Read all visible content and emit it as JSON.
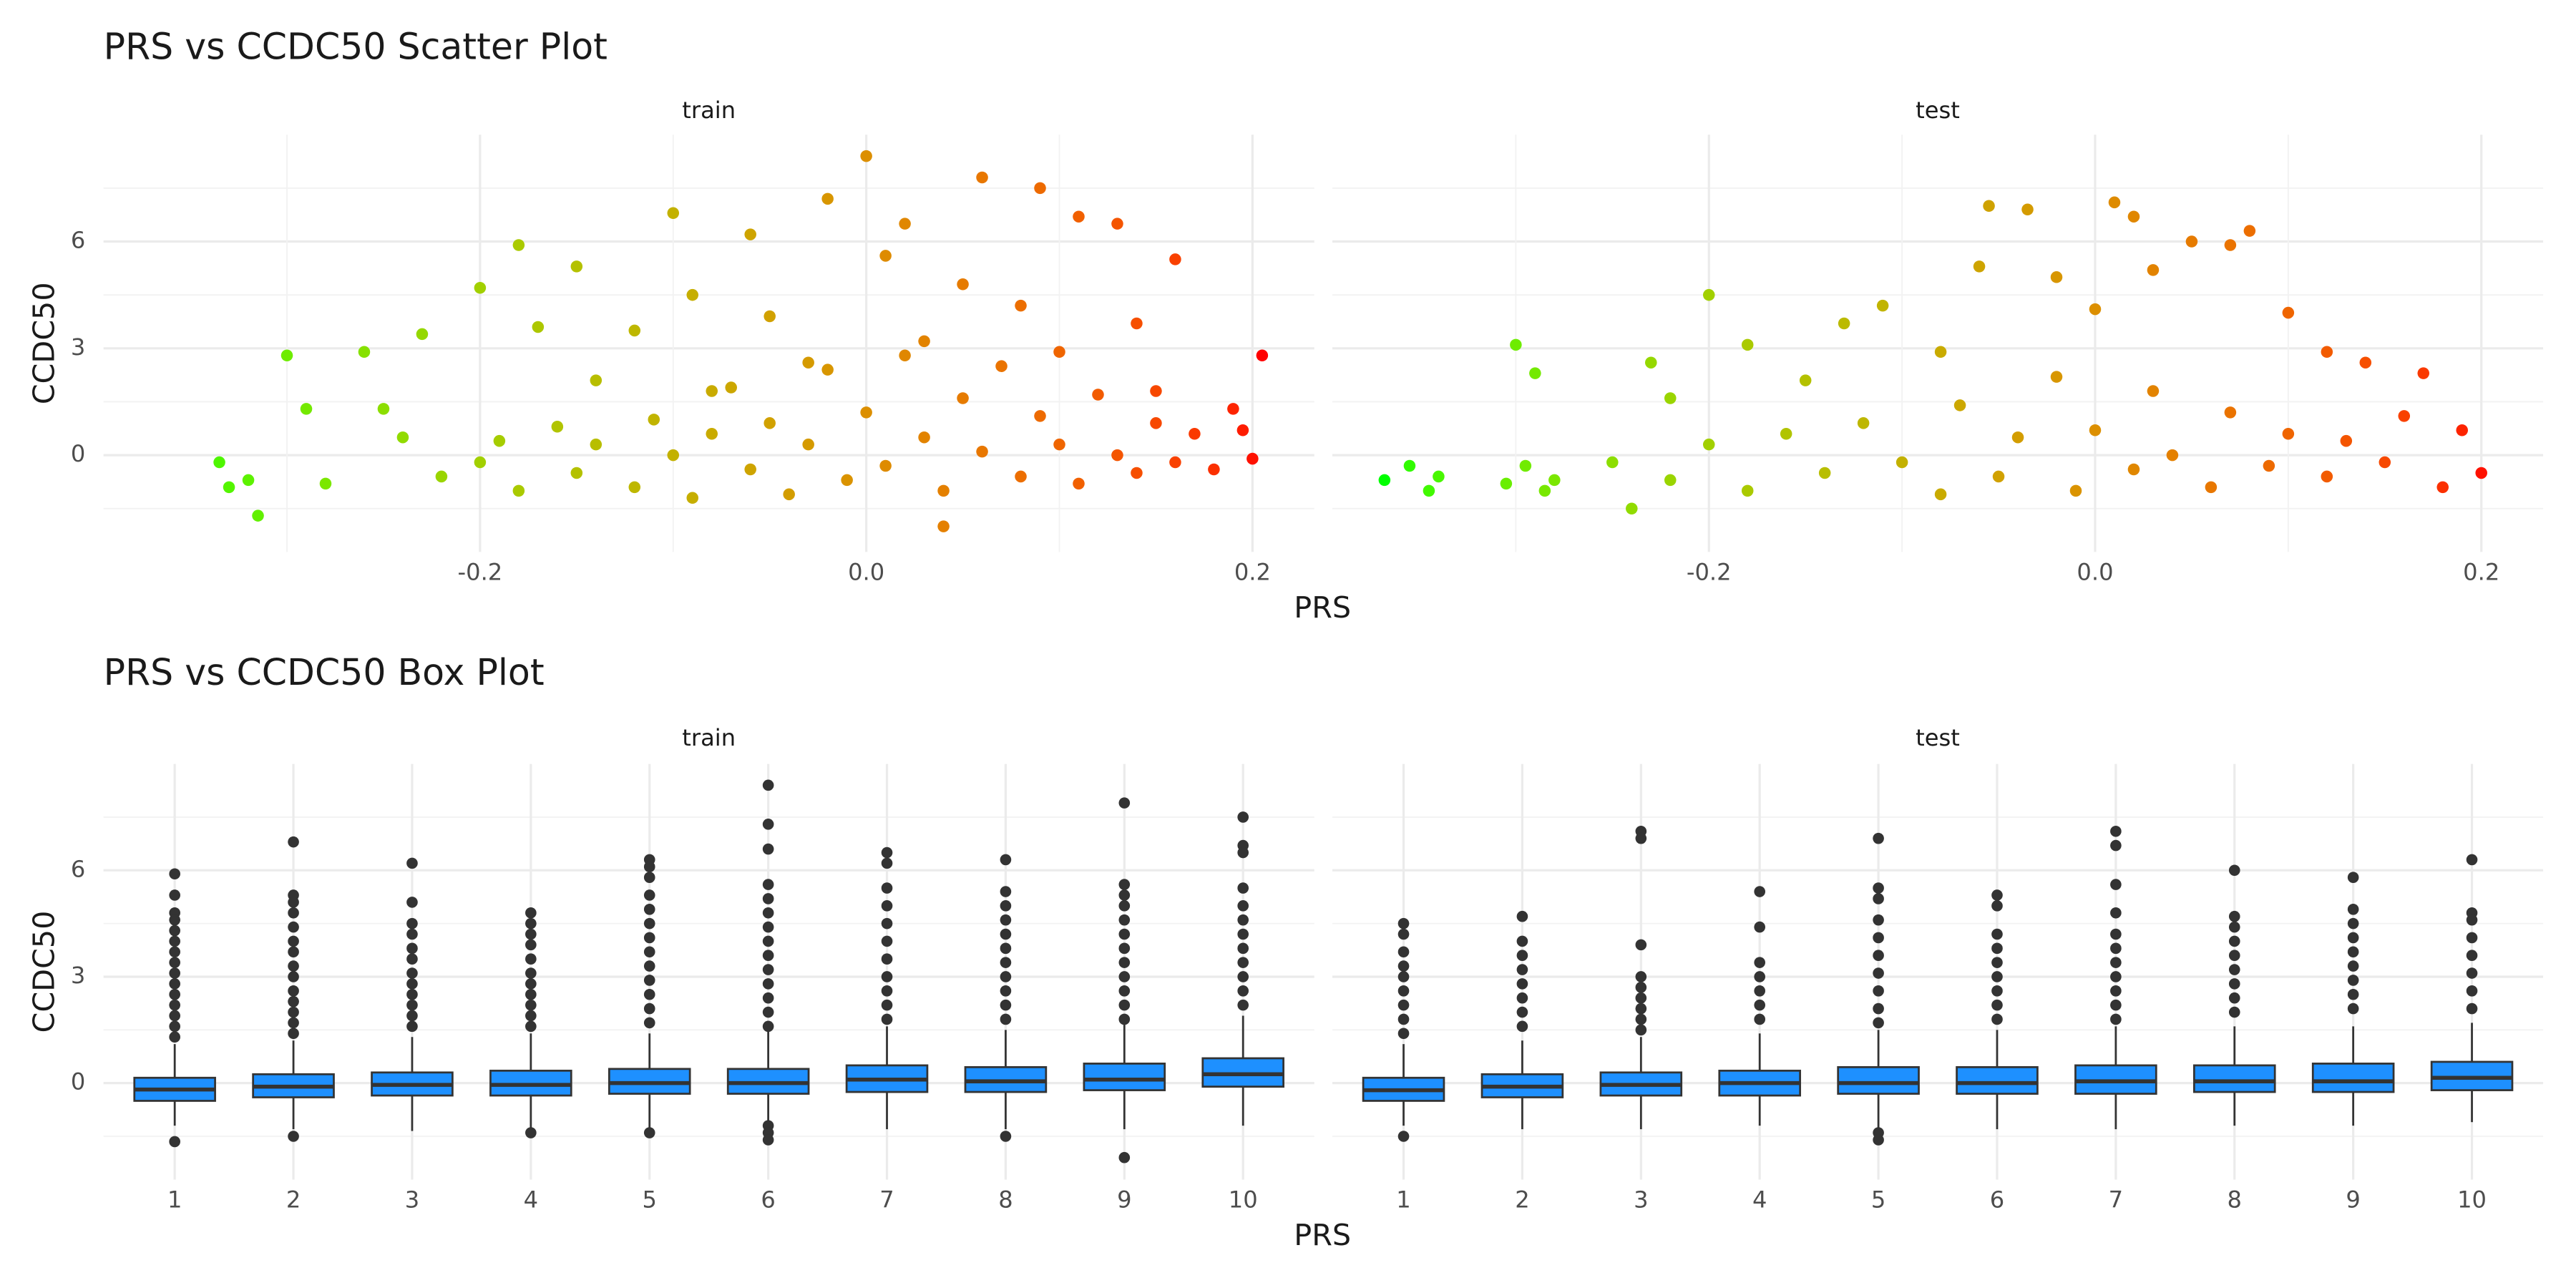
{
  "chart_data": [
    {
      "type": "scatter",
      "title": "PRS vs CCDC50 Scatter Plot",
      "xlabel": "PRS",
      "ylabel": "CCDC50",
      "color_low": "#00FF00",
      "color_high": "#FF0000",
      "xlim": [
        -0.395,
        0.232
      ],
      "xticks": [
        {
          "value": -0.2,
          "label": "-0.2"
        },
        {
          "value": 0,
          "label": "0.0"
        },
        {
          "value": 0.2,
          "label": "0.2"
        }
      ],
      "x_minor_grid": [
        -0.3,
        -0.1,
        0.1
      ],
      "ylim": [
        -2.72,
        9.0
      ],
      "yticks": [
        0,
        3,
        6
      ],
      "y_minor_grid": [
        -1.5,
        1.5,
        4.5,
        7.5
      ],
      "grid": true,
      "facets": [
        {
          "label": "train",
          "x": [
            -0.335,
            -0.33,
            -0.32,
            -0.315,
            -0.3,
            -0.29,
            -0.28,
            -0.26,
            -0.25,
            -0.24,
            -0.23,
            -0.2,
            -0.18,
            -0.17,
            -0.15,
            -0.14,
            -0.12,
            -0.1,
            -0.09,
            -0.08,
            -0.06,
            -0.05,
            -0.03,
            -0.02,
            0.0,
            0.01,
            0.02,
            0.03,
            0.04,
            0.05,
            0.06,
            0.08,
            0.09,
            0.1,
            0.11,
            0.13,
            0.14,
            0.15,
            0.16,
            0.17,
            0.19,
            0.2,
            0.205,
            0.195,
            0.18,
            -0.22,
            -0.2,
            -0.19,
            -0.18,
            -0.16,
            -0.15,
            -0.14,
            -0.12,
            -0.11,
            -0.1,
            -0.09,
            -0.08,
            -0.07,
            -0.06,
            -0.05,
            -0.04,
            -0.03,
            -0.02,
            -0.01,
            0.0,
            0.01,
            0.02,
            0.03,
            0.04,
            0.05,
            0.06,
            0.07,
            0.08,
            0.09,
            0.1,
            0.11,
            0.12,
            0.13,
            0.14,
            0.15,
            0.16
          ],
          "y": [
            -0.2,
            -0.9,
            -0.7,
            -1.7,
            2.8,
            1.3,
            -0.8,
            2.9,
            1.3,
            0.5,
            3.4,
            4.7,
            5.9,
            3.6,
            5.3,
            2.1,
            3.5,
            6.8,
            4.5,
            1.8,
            6.2,
            3.9,
            2.6,
            7.2,
            8.4,
            5.6,
            6.5,
            3.2,
            -2.0,
            4.8,
            7.8,
            4.2,
            7.5,
            2.9,
            6.7,
            6.5,
            3.7,
            1.8,
            5.5,
            0.6,
            1.3,
            -0.1,
            2.8,
            0.7,
            -0.4,
            -0.6,
            -0.2,
            0.4,
            -1.0,
            0.8,
            -0.5,
            0.3,
            -0.9,
            1.0,
            0.0,
            -1.2,
            0.6,
            1.9,
            -0.4,
            0.9,
            -1.1,
            0.3,
            2.4,
            -0.7,
            1.2,
            -0.3,
            2.8,
            0.5,
            -1.0,
            1.6,
            0.1,
            2.5,
            -0.6,
            1.1,
            0.3,
            -0.8,
            1.7,
            0.0,
            -0.5,
            0.9,
            -0.2
          ]
        },
        {
          "label": "test",
          "x": [
            -0.368,
            -0.355,
            -0.345,
            -0.34,
            -0.305,
            -0.295,
            -0.285,
            -0.28,
            -0.3,
            -0.29,
            -0.24,
            -0.23,
            -0.22,
            -0.2,
            -0.18,
            -0.15,
            -0.13,
            -0.11,
            -0.08,
            -0.06,
            -0.055,
            -0.035,
            -0.02,
            0.0,
            0.01,
            0.02,
            0.03,
            0.05,
            0.07,
            0.08,
            0.1,
            0.12,
            0.14,
            0.16,
            0.17,
            0.19,
            0.2,
            0.18,
            -0.25,
            -0.22,
            -0.2,
            -0.18,
            -0.16,
            -0.14,
            -0.12,
            -0.1,
            -0.08,
            -0.07,
            -0.05,
            -0.04,
            -0.02,
            -0.01,
            0.0,
            0.02,
            0.03,
            0.04,
            0.06,
            0.07,
            0.09,
            0.1,
            0.12,
            0.13,
            0.15
          ],
          "y": [
            -0.7,
            -0.3,
            -1.0,
            -0.6,
            -0.8,
            -0.3,
            -1.0,
            -0.7,
            3.1,
            2.3,
            -1.5,
            2.6,
            1.6,
            4.5,
            3.1,
            2.1,
            3.7,
            4.2,
            2.9,
            5.3,
            7.0,
            6.9,
            5.0,
            4.1,
            7.1,
            6.7,
            5.2,
            6.0,
            5.9,
            6.3,
            4.0,
            2.9,
            2.6,
            1.1,
            2.3,
            0.7,
            -0.5,
            -0.9,
            -0.2,
            -0.7,
            0.3,
            -1.0,
            0.6,
            -0.5,
            0.9,
            -0.2,
            -1.1,
            1.4,
            -0.6,
            0.5,
            2.2,
            -1.0,
            0.7,
            -0.4,
            1.8,
            0.0,
            -0.9,
            1.2,
            -0.3,
            0.6,
            -0.6,
            0.4,
            -0.2
          ]
        }
      ]
    },
    {
      "type": "box",
      "title": "PRS vs CCDC50 Box Plot",
      "xlabel": "PRS",
      "ylabel": "CCDC50",
      "fill": "#1E90FF",
      "line_color": "#333333",
      "categories": [
        "1",
        "2",
        "3",
        "4",
        "5",
        "6",
        "7",
        "8",
        "9",
        "10"
      ],
      "ylim": [
        -2.72,
        9.0
      ],
      "yticks": [
        0,
        3,
        6
      ],
      "y_minor_grid": [
        -1.5,
        1.5,
        4.5,
        7.5
      ],
      "grid": true,
      "facets": [
        {
          "label": "train",
          "q1": [
            -0.5,
            -0.4,
            -0.35,
            -0.35,
            -0.3,
            -0.3,
            -0.25,
            -0.25,
            -0.2,
            -0.1
          ],
          "median": [
            -0.18,
            -0.1,
            -0.05,
            -0.05,
            0.0,
            0.0,
            0.1,
            0.05,
            0.1,
            0.25
          ],
          "q3": [
            0.15,
            0.25,
            0.3,
            0.35,
            0.4,
            0.4,
            0.5,
            0.45,
            0.55,
            0.7
          ],
          "whisker_low": [
            -1.2,
            -1.3,
            -1.35,
            -1.3,
            -1.3,
            -1.3,
            -1.3,
            -1.3,
            -1.3,
            -1.2
          ],
          "whisker_high": [
            1.1,
            1.2,
            1.3,
            1.4,
            1.4,
            1.45,
            1.6,
            1.5,
            1.65,
            1.9
          ],
          "outliers": [
            [
              5.9,
              5.3,
              4.8,
              4.6,
              4.3,
              4.0,
              3.7,
              3.4,
              3.1,
              2.8,
              2.5,
              2.2,
              1.9,
              1.6,
              1.3,
              -1.65
            ],
            [
              6.8,
              5.3,
              5.1,
              4.8,
              4.4,
              4.0,
              3.7,
              3.3,
              3.0,
              2.6,
              2.3,
              2.0,
              1.7,
              1.4,
              -1.5
            ],
            [
              6.2,
              5.1,
              4.5,
              4.2,
              3.8,
              3.5,
              3.1,
              2.8,
              2.5,
              2.2,
              1.9,
              1.6
            ],
            [
              4.8,
              4.5,
              4.2,
              3.9,
              3.5,
              3.1,
              2.8,
              2.5,
              2.2,
              1.9,
              1.6,
              -1.4
            ],
            [
              6.3,
              6.1,
              5.8,
              5.3,
              4.9,
              4.5,
              4.1,
              3.7,
              3.3,
              2.9,
              2.5,
              2.1,
              1.7,
              -1.4
            ],
            [
              8.4,
              7.3,
              6.6,
              5.6,
              5.2,
              4.8,
              4.4,
              4.0,
              3.6,
              3.2,
              2.8,
              2.4,
              2.0,
              1.6,
              -1.2,
              -1.4,
              -1.6
            ],
            [
              6.5,
              6.2,
              5.5,
              5.0,
              4.5,
              4.0,
              3.5,
              3.0,
              2.6,
              2.2,
              1.8
            ],
            [
              6.3,
              5.4,
              5.0,
              4.6,
              4.2,
              3.8,
              3.4,
              3.0,
              2.6,
              2.2,
              1.8,
              -1.5
            ],
            [
              7.9,
              5.6,
              5.3,
              5.0,
              4.6,
              4.2,
              3.8,
              3.4,
              3.0,
              2.6,
              2.2,
              1.8,
              -2.1
            ],
            [
              7.5,
              6.7,
              6.5,
              5.5,
              5.0,
              4.6,
              4.2,
              3.8,
              3.4,
              3.0,
              2.6,
              2.2
            ]
          ]
        },
        {
          "label": "test",
          "q1": [
            -0.5,
            -0.4,
            -0.35,
            -0.35,
            -0.3,
            -0.3,
            -0.3,
            -0.25,
            -0.25,
            -0.2
          ],
          "median": [
            -0.2,
            -0.1,
            -0.05,
            0.0,
            0.0,
            0.0,
            0.05,
            0.05,
            0.05,
            0.15
          ],
          "q3": [
            0.15,
            0.25,
            0.3,
            0.35,
            0.45,
            0.45,
            0.5,
            0.5,
            0.55,
            0.6
          ],
          "whisker_low": [
            -1.2,
            -1.3,
            -1.3,
            -1.2,
            -1.4,
            -1.3,
            -1.3,
            -1.2,
            -1.2,
            -1.1
          ],
          "whisker_high": [
            1.1,
            1.2,
            1.3,
            1.4,
            1.5,
            1.5,
            1.6,
            1.6,
            1.6,
            1.7
          ],
          "outliers": [
            [
              4.5,
              4.2,
              3.7,
              3.3,
              3.0,
              2.6,
              2.2,
              1.8,
              1.4,
              -1.5
            ],
            [
              4.7,
              4.0,
              3.6,
              3.2,
              2.8,
              2.4,
              2.0,
              1.6
            ],
            [
              7.1,
              6.9,
              3.9,
              3.0,
              2.7,
              2.4,
              2.1,
              1.8,
              1.5
            ],
            [
              5.4,
              4.4,
              3.4,
              3.0,
              2.6,
              2.2,
              1.8
            ],
            [
              6.9,
              5.5,
              5.2,
              4.6,
              4.1,
              3.6,
              3.1,
              2.6,
              2.1,
              1.7,
              -1.4,
              -1.6
            ],
            [
              5.3,
              5.0,
              4.2,
              3.8,
              3.4,
              3.0,
              2.6,
              2.2,
              1.8
            ],
            [
              7.1,
              6.7,
              5.6,
              4.8,
              4.2,
              3.8,
              3.4,
              3.0,
              2.6,
              2.2,
              1.8
            ],
            [
              6.0,
              4.7,
              4.4,
              4.0,
              3.6,
              3.2,
              2.8,
              2.4,
              2.0
            ],
            [
              5.8,
              4.9,
              4.5,
              4.1,
              3.7,
              3.3,
              2.9,
              2.5,
              2.1
            ],
            [
              6.3,
              4.8,
              4.6,
              4.1,
              3.6,
              3.1,
              2.6,
              2.1
            ]
          ]
        }
      ]
    }
  ]
}
